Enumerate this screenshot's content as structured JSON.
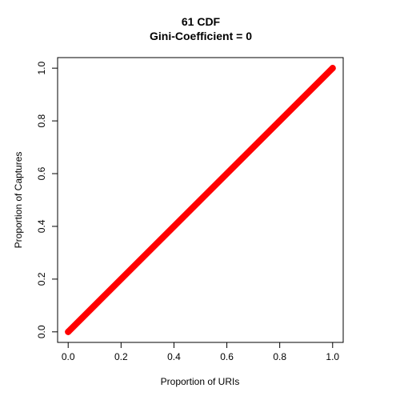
{
  "chart_data": {
    "type": "line",
    "title": [
      "61 CDF",
      "Gini-Coefficient =  0"
    ],
    "xlabel": "Proportion of URIs",
    "ylabel": "Proportion of Captures",
    "xlim": [
      -0.04,
      1.04
    ],
    "ylim": [
      -0.04,
      1.04
    ],
    "x_ticks": [
      "0.0",
      "0.2",
      "0.4",
      "0.6",
      "0.8",
      "1.0"
    ],
    "y_ticks": [
      "0.0",
      "0.2",
      "0.4",
      "0.6",
      "0.8",
      "1.0"
    ],
    "series": [
      {
        "color": "#ff0000",
        "x": [
          0.0,
          1.0
        ],
        "y": [
          0.0,
          1.0
        ]
      }
    ]
  }
}
